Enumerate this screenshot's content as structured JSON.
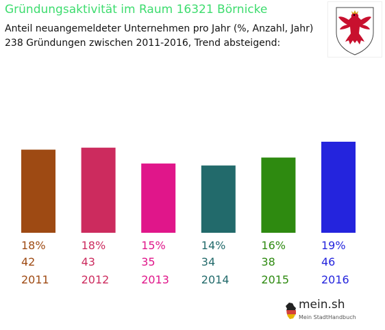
{
  "header": {
    "title": "Gründungsaktivität im Raum 16321 Börnicke",
    "subtitle_line1": "Anteil neuangemeldeter Unternehmen pro Jahr (%, Anzahl, Jahr)",
    "subtitle_line2": "238 Gründungen zwischen 2011-2016, Trend absteigend:"
  },
  "logo": {
    "word": "mein.sh",
    "tagline": "Mein StadtHandbuch"
  },
  "chart_data": {
    "type": "bar",
    "title": "Gründungsaktivität im Raum 16321 Börnicke",
    "categories": [
      "2011",
      "2012",
      "2013",
      "2014",
      "2015",
      "2016"
    ],
    "series": [
      {
        "percent_labels": [
          "18%",
          "18%",
          "15%",
          "14%",
          "16%",
          "19%"
        ],
        "counts": [
          42,
          43,
          35,
          34,
          38,
          46
        ],
        "values": [
          42,
          43,
          35,
          34,
          38,
          46
        ]
      }
    ],
    "colors": [
      "#9e4a13",
      "#cc2b5e",
      "#e0168a",
      "#226a6b",
      "#2e8a10",
      "#2424dd"
    ],
    "ylim": [
      0,
      46
    ],
    "grid": false,
    "legend": "none"
  }
}
